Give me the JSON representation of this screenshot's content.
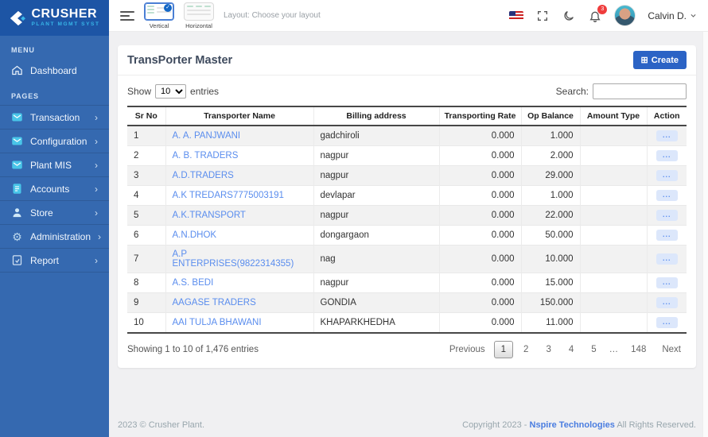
{
  "brand": {
    "name": "CRUSHER",
    "tagline": "PLANT MGMT SYST"
  },
  "header": {
    "layout_hint": "Layout: Choose your layout",
    "layout_options": {
      "vertical": "Vertical",
      "horizontal": "Horizontal",
      "selected": "Vertical"
    },
    "notification_count": "3",
    "user_name": "Calvin D."
  },
  "sidebar": {
    "menu_label": "MENU",
    "pages_label": "PAGES",
    "menu_items": [
      {
        "label": "Dashboard",
        "icon": "home-icon"
      }
    ],
    "page_items": [
      {
        "label": "Transaction",
        "icon": "mail-icon"
      },
      {
        "label": "Configuration",
        "icon": "mail-icon"
      },
      {
        "label": "Plant MIS",
        "icon": "mail-icon"
      },
      {
        "label": "Accounts",
        "icon": "journal-icon"
      },
      {
        "label": "Store",
        "icon": "person-icon"
      },
      {
        "label": "Administration",
        "icon": "gear-icon"
      },
      {
        "label": "Report",
        "icon": "report-icon"
      }
    ]
  },
  "page": {
    "title": "TransPorter Master",
    "create_label": "Create",
    "create_icon": "⊞",
    "show_label": "Show",
    "entries_label": "entries",
    "page_size": "10",
    "search_label": "Search:",
    "search_value": "",
    "table": {
      "columns": [
        "Sr No",
        "Transporter Name",
        "Billing address",
        "Transporting Rate",
        "Op Balance",
        "Amount Type",
        "Action"
      ],
      "action_label": "...",
      "rows": [
        {
          "sr": "1",
          "name": "A. A. PANJWANI",
          "billing": "gadchiroli",
          "rate": "0.000",
          "balance": "1.000",
          "amount_type": ""
        },
        {
          "sr": "2",
          "name": "A. B. TRADERS",
          "billing": "nagpur",
          "rate": "0.000",
          "balance": "2.000",
          "amount_type": ""
        },
        {
          "sr": "3",
          "name": "A.D.TRADERS",
          "billing": "nagpur",
          "rate": "0.000",
          "balance": "29.000",
          "amount_type": ""
        },
        {
          "sr": "4",
          "name": "A.K TREDARS7775003191",
          "billing": "devlapar",
          "rate": "0.000",
          "balance": "1.000",
          "amount_type": ""
        },
        {
          "sr": "5",
          "name": "A.K.TRANSPORT",
          "billing": "nagpur",
          "rate": "0.000",
          "balance": "22.000",
          "amount_type": ""
        },
        {
          "sr": "6",
          "name": "A.N.DHOK",
          "billing": "dongargaon",
          "rate": "0.000",
          "balance": "50.000",
          "amount_type": ""
        },
        {
          "sr": "7",
          "name": "A.P ENTERPRISES(9822314355)",
          "billing": "nag",
          "rate": "0.000",
          "balance": "10.000",
          "amount_type": ""
        },
        {
          "sr": "8",
          "name": "A.S. BEDI",
          "billing": "nagpur",
          "rate": "0.000",
          "balance": "15.000",
          "amount_type": ""
        },
        {
          "sr": "9",
          "name": "AAGASE TRADERS",
          "billing": "GONDIA",
          "rate": "0.000",
          "balance": "150.000",
          "amount_type": ""
        },
        {
          "sr": "10",
          "name": "AAI TULJA BHAWANI",
          "billing": "KHAPARKHEDHA",
          "rate": "0.000",
          "balance": "11.000",
          "amount_type": ""
        }
      ]
    },
    "footer": {
      "showing": "Showing 1 to 10 of 1,476 entries",
      "previous_label": "Previous",
      "pages": [
        "1",
        "2",
        "3",
        "4",
        "5",
        "…",
        "148"
      ],
      "active_page": "1",
      "next_label": "Next"
    }
  },
  "footer": {
    "left": "2023 © Crusher Plant.",
    "copyright_prefix": "Copyright 2023 - ",
    "company": "Nspire Technologies",
    "copyright_suffix": " All Rights Reserved."
  },
  "colors": {
    "sidebar": "#3569b0",
    "sidebar_dark": "#1d55a5",
    "accent_cyan": "#38b6e8",
    "primary": "#2b63c5",
    "link": "#5a8dee",
    "badge": "#ef3c3c",
    "stripe": "#f2f2f2"
  }
}
